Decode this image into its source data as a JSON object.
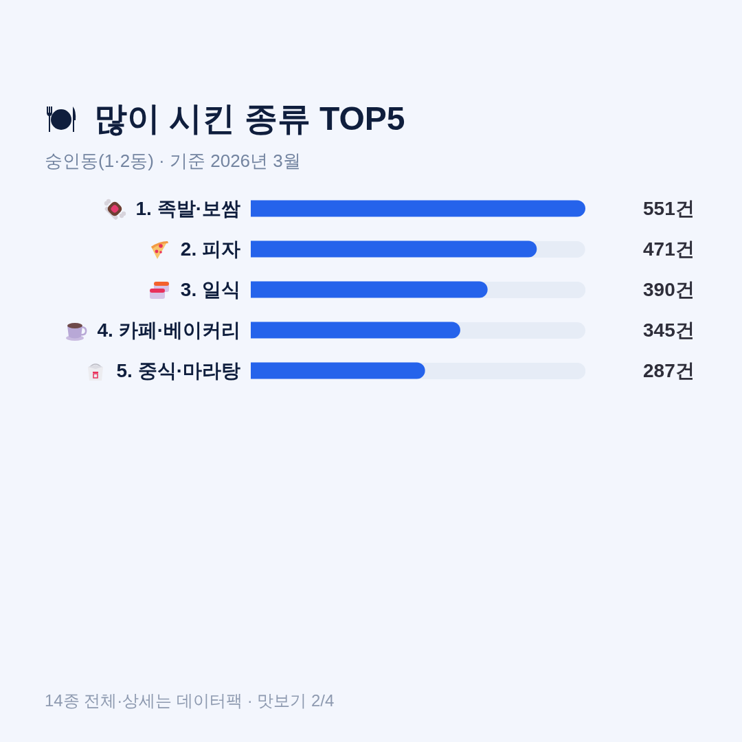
{
  "chart_data": {
    "type": "bar",
    "orientation": "horizontal",
    "title": "많이 시킨 종류 TOP5",
    "subtitle": "숭인동(1·2동) · 기준 2026년 3월",
    "categories": [
      "1. 족발·보쌈",
      "2. 피자",
      "3. 일식",
      "4. 카페·베이커리",
      "5. 중식·마라탕"
    ],
    "values": [
      551,
      471,
      390,
      345,
      287
    ],
    "color": "#2563eb",
    "value_labels": [
      "551건",
      "471건",
      "390건",
      "345건",
      "287건"
    ],
    "xlim": [
      0,
      551
    ],
    "tick_labels": "y",
    "annotations": [
      "14종 전체·상세는 데이터팩 · 맛보기 2/4"
    ]
  }
}
